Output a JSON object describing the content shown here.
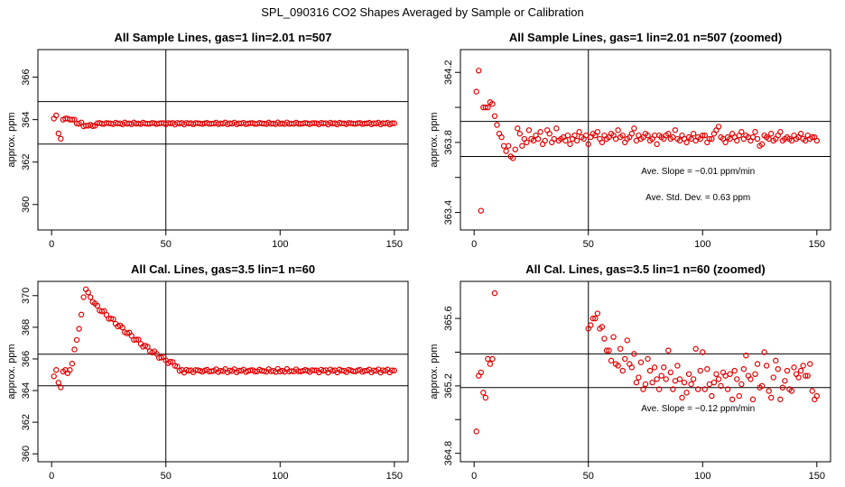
{
  "figure_title": "SPL_090316  CO2 Shapes Averaged by Sample or Calibration",
  "chart_data": [
    {
      "type": "scatter",
      "title": "All Sample Lines, gas=1 lin=2.01 n=507",
      "ylabel": "approx. ppm",
      "xlabel": "",
      "xlim": [
        -6,
        156
      ],
      "ylim": [
        358.8,
        367.3
      ],
      "xticks": [
        0,
        50,
        100,
        150
      ],
      "xtick_labels": [
        "0",
        "50",
        "100",
        "150"
      ],
      "yticks": [
        360,
        362,
        364,
        366
      ],
      "ytick_labels": [
        "360",
        "362",
        "364",
        "366"
      ],
      "hlines": [
        364.85,
        362.85
      ],
      "vline": 50,
      "marker_color": "#e00000",
      "head": [
        [
          1,
          364.05
        ],
        [
          2,
          364.2
        ],
        [
          3,
          363.35
        ],
        [
          4,
          363.1
        ],
        [
          5,
          364.0
        ],
        [
          6,
          364.05
        ],
        [
          7,
          364.05
        ],
        [
          8,
          364.0
        ],
        [
          9,
          364.0
        ],
        [
          10,
          364.0
        ]
      ],
      "tail_start": 11,
      "tail_end": 150,
      "tail_base": 363.82,
      "tail_amp": 0.05,
      "tail_dip": [
        [
          14,
          19,
          -0.1
        ]
      ],
      "annotations": []
    },
    {
      "type": "scatter",
      "title": "All Sample Lines, gas=1 lin=2.01 n=507 (zoomed)",
      "ylabel": "approx. ppm",
      "xlabel": "",
      "xlim": [
        -6,
        156
      ],
      "ylim": [
        363.3,
        364.33
      ],
      "xticks": [
        0,
        50,
        100,
        150
      ],
      "xtick_labels": [
        "0",
        "50",
        "100",
        "150"
      ],
      "yticks": [
        363.4,
        363.6,
        363.8,
        364.0,
        364.2
      ],
      "ytick_labels": [
        "363.4",
        "",
        "363.8",
        "",
        "364.2"
      ],
      "hlines": [
        363.92,
        363.72
      ],
      "vline": 50,
      "marker_color": "#e00000",
      "points": [
        [
          1,
          364.09
        ],
        [
          2,
          364.21
        ],
        [
          3,
          363.41
        ],
        [
          4,
          364.0
        ],
        [
          5,
          364.0
        ],
        [
          6,
          364.0
        ],
        [
          7,
          364.03
        ],
        [
          8,
          364.02
        ],
        [
          9,
          363.95
        ],
        [
          10,
          363.9
        ],
        [
          11,
          363.85
        ],
        [
          12,
          363.83
        ],
        [
          13,
          363.78
        ],
        [
          14,
          363.75
        ],
        [
          15,
          363.78
        ],
        [
          16,
          363.72
        ],
        [
          17,
          363.71
        ],
        [
          18,
          363.76
        ],
        [
          19,
          363.88
        ],
        [
          20,
          363.85
        ],
        [
          21,
          363.78
        ],
        [
          22,
          363.82
        ],
        [
          23,
          363.8
        ],
        [
          24,
          363.87
        ],
        [
          25,
          363.82
        ],
        [
          26,
          363.81
        ],
        [
          27,
          363.84
        ],
        [
          28,
          363.82
        ],
        [
          29,
          363.86
        ],
        [
          30,
          363.79
        ],
        [
          31,
          363.81
        ],
        [
          32,
          363.87
        ],
        [
          33,
          363.85
        ],
        [
          34,
          363.8
        ],
        [
          35,
          363.82
        ],
        [
          36,
          363.88
        ],
        [
          37,
          363.81
        ],
        [
          38,
          363.82
        ],
        [
          39,
          363.83
        ],
        [
          40,
          363.81
        ],
        [
          41,
          363.84
        ],
        [
          42,
          363.79
        ],
        [
          43,
          363.82
        ],
        [
          44,
          363.84
        ],
        [
          45,
          363.81
        ],
        [
          46,
          363.86
        ],
        [
          47,
          363.83
        ],
        [
          48,
          363.82
        ],
        [
          49,
          363.84
        ],
        [
          50,
          363.79
        ],
        [
          51,
          363.83
        ],
        [
          52,
          363.85
        ],
        [
          53,
          363.84
        ],
        [
          54,
          363.86
        ],
        [
          55,
          363.82
        ],
        [
          56,
          363.8
        ],
        [
          57,
          363.84
        ],
        [
          58,
          363.82
        ],
        [
          59,
          363.83
        ],
        [
          60,
          363.85
        ],
        [
          61,
          363.84
        ],
        [
          62,
          363.82
        ],
        [
          63,
          363.87
        ],
        [
          64,
          363.83
        ],
        [
          65,
          363.84
        ],
        [
          66,
          363.8
        ],
        [
          67,
          363.82
        ],
        [
          68,
          363.83
        ],
        [
          69,
          363.85
        ],
        [
          70,
          363.88
        ],
        [
          71,
          363.81
        ],
        [
          72,
          363.84
        ],
        [
          73,
          363.82
        ],
        [
          74,
          363.83
        ],
        [
          75,
          363.85
        ],
        [
          76,
          363.84
        ],
        [
          77,
          363.81
        ],
        [
          78,
          363.82
        ],
        [
          79,
          363.84
        ],
        [
          80,
          363.79
        ],
        [
          81,
          363.84
        ],
        [
          82,
          363.83
        ],
        [
          83,
          363.82
        ],
        [
          84,
          363.84
        ],
        [
          85,
          363.85
        ],
        [
          86,
          363.82
        ],
        [
          87,
          363.83
        ],
        [
          88,
          363.87
        ],
        [
          89,
          363.82
        ],
        [
          90,
          363.81
        ],
        [
          91,
          363.84
        ],
        [
          92,
          363.82
        ],
        [
          93,
          363.8
        ],
        [
          94,
          363.83
        ],
        [
          95,
          363.82
        ],
        [
          96,
          363.85
        ],
        [
          97,
          363.81
        ],
        [
          98,
          363.83
        ],
        [
          99,
          363.82
        ],
        [
          100,
          363.84
        ],
        [
          101,
          363.84
        ],
        [
          102,
          363.8
        ],
        [
          103,
          363.82
        ],
        [
          104,
          363.82
        ],
        [
          105,
          363.85
        ],
        [
          106,
          363.87
        ],
        [
          107,
          363.89
        ],
        [
          108,
          363.83
        ],
        [
          109,
          363.82
        ],
        [
          110,
          363.8
        ],
        [
          111,
          363.83
        ],
        [
          112,
          363.82
        ],
        [
          113,
          363.85
        ],
        [
          114,
          363.83
        ],
        [
          115,
          363.81
        ],
        [
          116,
          363.84
        ],
        [
          117,
          363.86
        ],
        [
          118,
          363.82
        ],
        [
          119,
          363.84
        ],
        [
          120,
          363.83
        ],
        [
          121,
          363.81
        ],
        [
          122,
          363.83
        ],
        [
          123,
          363.86
        ],
        [
          124,
          363.82
        ],
        [
          125,
          363.78
        ],
        [
          126,
          363.79
        ],
        [
          127,
          363.84
        ],
        [
          128,
          363.83
        ],
        [
          129,
          363.82
        ],
        [
          130,
          363.85
        ],
        [
          131,
          363.81
        ],
        [
          132,
          363.82
        ],
        [
          133,
          363.84
        ],
        [
          134,
          363.86
        ],
        [
          135,
          363.81
        ],
        [
          136,
          363.82
        ],
        [
          137,
          363.83
        ],
        [
          138,
          363.82
        ],
        [
          139,
          363.81
        ],
        [
          140,
          363.84
        ],
        [
          141,
          363.82
        ],
        [
          142,
          363.83
        ],
        [
          143,
          363.85
        ],
        [
          144,
          363.82
        ],
        [
          145,
          363.81
        ],
        [
          146,
          363.84
        ],
        [
          147,
          363.82
        ],
        [
          148,
          363.83
        ],
        [
          149,
          363.83
        ],
        [
          150,
          363.81
        ]
      ],
      "annotations": [
        {
          "text": "Ave. Slope = −0.01  ppm/min",
          "x": 98,
          "y": 363.62
        },
        {
          "text": "Ave. Std. Dev. = 0.63  ppm",
          "x": 98,
          "y": 363.47
        }
      ]
    },
    {
      "type": "scatter",
      "title": "All Cal. Lines, gas=3.5 lin=1 n=60",
      "ylabel": "approx. ppm",
      "xlabel": "",
      "xlim": [
        -6,
        156
      ],
      "ylim": [
        359.5,
        370.9
      ],
      "xticks": [
        0,
        50,
        100,
        150
      ],
      "xtick_labels": [
        "0",
        "50",
        "100",
        "150"
      ],
      "yticks": [
        360,
        362,
        364,
        366,
        368,
        370
      ],
      "ytick_labels": [
        "360",
        "362",
        "364",
        "366",
        "368",
        "370"
      ],
      "hlines": [
        366.3,
        364.3
      ],
      "vline": 50,
      "marker_color": "#e00000",
      "head": [
        [
          1,
          364.9
        ],
        [
          2,
          365.3
        ],
        [
          3,
          364.5
        ],
        [
          4,
          364.2
        ],
        [
          5,
          365.2
        ],
        [
          6,
          365.3
        ],
        [
          7,
          365.1
        ],
        [
          8,
          365.3
        ],
        [
          9,
          365.7
        ],
        [
          10,
          366.6
        ],
        [
          11,
          367.2
        ],
        [
          12,
          367.9
        ],
        [
          13,
          368.8
        ],
        [
          14,
          369.9
        ],
        [
          15,
          370.4
        ],
        [
          16,
          370.2
        ],
        [
          17,
          369.9
        ],
        [
          18,
          369.6
        ],
        [
          19,
          369.5
        ]
      ],
      "decay": {
        "start": 20,
        "end": 55,
        "from": 369.3,
        "to": 365.6
      },
      "tail_start": 56,
      "tail_end": 150,
      "tail_base": 365.25,
      "tail_amp": 0.12,
      "tail_dip": [],
      "annotations": []
    },
    {
      "type": "scatter",
      "title": "All Cal. Lines, gas=3.5 lin=1 n=60 (zoomed)",
      "ylabel": "approx. ppm",
      "xlabel": "",
      "xlim": [
        -6,
        156
      ],
      "ylim": [
        364.75,
        365.82
      ],
      "xticks": [
        0,
        50,
        100,
        150
      ],
      "xtick_labels": [
        "0",
        "50",
        "100",
        "150"
      ],
      "yticks": [
        364.8,
        365.0,
        365.2,
        365.4,
        365.6
      ],
      "ytick_labels": [
        "364.8",
        "",
        "365.2",
        "",
        "365.6"
      ],
      "hlines": [
        365.39,
        365.19
      ],
      "vline": 50,
      "marker_color": "#e00000",
      "points": [
        [
          1,
          364.93
        ],
        [
          2,
          365.26
        ],
        [
          3,
          365.28
        ],
        [
          4,
          365.16
        ],
        [
          5,
          365.13
        ],
        [
          6,
          365.36
        ],
        [
          7,
          365.33
        ],
        [
          8,
          365.36
        ],
        [
          9,
          365.75
        ],
        [
          50,
          365.54
        ],
        [
          51,
          365.56
        ],
        [
          52,
          365.6
        ],
        [
          53,
          365.6
        ],
        [
          54,
          365.63
        ],
        [
          55,
          365.54
        ],
        [
          56,
          365.55
        ],
        [
          57,
          365.48
        ],
        [
          58,
          365.41
        ],
        [
          59,
          365.41
        ],
        [
          60,
          365.35
        ],
        [
          61,
          365.49
        ],
        [
          62,
          365.33
        ],
        [
          63,
          365.32
        ],
        [
          64,
          365.42
        ],
        [
          65,
          365.29
        ],
        [
          66,
          365.36
        ],
        [
          67,
          365.47
        ],
        [
          68,
          365.33
        ],
        [
          69,
          365.31
        ],
        [
          70,
          365.39
        ],
        [
          71,
          365.22
        ],
        [
          72,
          365.25
        ],
        [
          73,
          365.34
        ],
        [
          74,
          365.18
        ],
        [
          75,
          365.21
        ],
        [
          76,
          365.36
        ],
        [
          77,
          365.29
        ],
        [
          78,
          365.22
        ],
        [
          79,
          365.31
        ],
        [
          80,
          365.24
        ],
        [
          81,
          365.18
        ],
        [
          82,
          365.26
        ],
        [
          83,
          365.31
        ],
        [
          84,
          365.24
        ],
        [
          85,
          365.41
        ],
        [
          86,
          365.28
        ],
        [
          87,
          365.18
        ],
        [
          88,
          365.23
        ],
        [
          89,
          365.32
        ],
        [
          90,
          365.24
        ],
        [
          91,
          365.13
        ],
        [
          92,
          365.22
        ],
        [
          93,
          365.16
        ],
        [
          94,
          365.27
        ],
        [
          95,
          365.21
        ],
        [
          96,
          365.24
        ],
        [
          97,
          365.42
        ],
        [
          98,
          365.18
        ],
        [
          99,
          365.29
        ],
        [
          100,
          365.4
        ],
        [
          101,
          365.18
        ],
        [
          102,
          365.3
        ],
        [
          103,
          365.21
        ],
        [
          104,
          365.14
        ],
        [
          105,
          365.22
        ],
        [
          106,
          365.27
        ],
        [
          107,
          365.24
        ],
        [
          108,
          365.2
        ],
        [
          109,
          365.28
        ],
        [
          110,
          365.26
        ],
        [
          111,
          365.18
        ],
        [
          112,
          365.27
        ],
        [
          113,
          365.12
        ],
        [
          114,
          365.29
        ],
        [
          115,
          365.24
        ],
        [
          116,
          365.14
        ],
        [
          117,
          365.21
        ],
        [
          118,
          365.3
        ],
        [
          119,
          365.38
        ],
        [
          120,
          365.26
        ],
        [
          121,
          365.24
        ],
        [
          122,
          365.12
        ],
        [
          123,
          365.27
        ],
        [
          124,
          365.33
        ],
        [
          125,
          365.19
        ],
        [
          126,
          365.2
        ],
        [
          127,
          365.4
        ],
        [
          128,
          365.32
        ],
        [
          129,
          365.17
        ],
        [
          130,
          365.13
        ],
        [
          131,
          365.25
        ],
        [
          132,
          365.35
        ],
        [
          133,
          365.3
        ],
        [
          134,
          365.12
        ],
        [
          135,
          365.19
        ],
        [
          136,
          365.23
        ],
        [
          137,
          365.29
        ],
        [
          138,
          365.18
        ],
        [
          139,
          365.17
        ],
        [
          140,
          365.31
        ],
        [
          141,
          365.27
        ],
        [
          142,
          365.25
        ],
        [
          143,
          365.29
        ],
        [
          144,
          365.32
        ],
        [
          145,
          365.26
        ],
        [
          146,
          365.26
        ],
        [
          147,
          365.33
        ],
        [
          148,
          365.17
        ],
        [
          149,
          365.12
        ],
        [
          150,
          365.14
        ]
      ],
      "annotations": [
        {
          "text": "Ave. Slope = −0.12  ppm/min",
          "x": 98,
          "y": 365.05
        }
      ]
    }
  ]
}
